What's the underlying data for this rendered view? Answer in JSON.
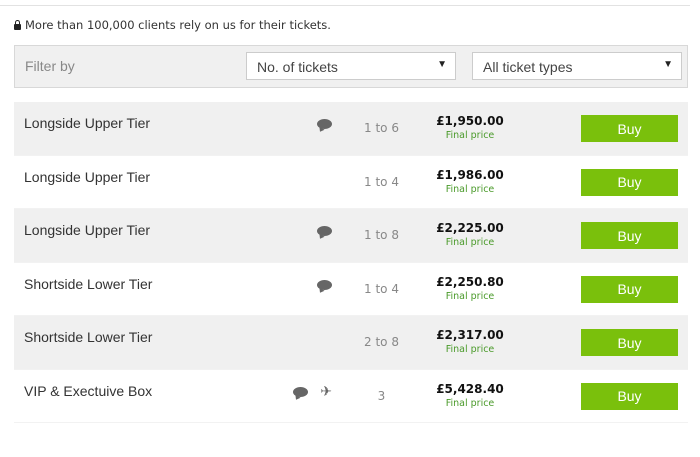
{
  "notice": {
    "icon": "lock-icon",
    "text": "More than 100,000 clients rely on us for their tickets."
  },
  "filter": {
    "label": "Filter by",
    "tickets_select": "No. of tickets",
    "types_select": "All ticket types"
  },
  "colors": {
    "buy": "#7ac00c",
    "final_price": "#4a9a2a"
  },
  "listings": [
    {
      "name": "Longside Upper Tier",
      "icons": [
        "comment-icon"
      ],
      "qty": "1 to 6",
      "price": "£1,950.00",
      "price_note": "Final price",
      "buy": "Buy"
    },
    {
      "name": "Longside Upper Tier",
      "icons": [],
      "qty": "1 to 4",
      "price": "£1,986.00",
      "price_note": "Final price",
      "buy": "Buy"
    },
    {
      "name": "Longside Upper Tier",
      "icons": [
        "comment-icon"
      ],
      "qty": "1 to 8",
      "price": "£2,225.00",
      "price_note": "Final price",
      "buy": "Buy"
    },
    {
      "name": "Shortside Lower Tier",
      "icons": [
        "comment-icon"
      ],
      "qty": "1 to 4",
      "price": "£2,250.80",
      "price_note": "Final price",
      "buy": "Buy"
    },
    {
      "name": "Shortside Lower Tier",
      "icons": [],
      "qty": "2 to 8",
      "price": "£2,317.00",
      "price_note": "Final price",
      "buy": "Buy"
    },
    {
      "name": "VIP & Exectuive Box",
      "icons": [
        "comment-icon",
        "plane-icon"
      ],
      "qty": "3",
      "price": "£5,428.40",
      "price_note": "Final price",
      "buy": "Buy"
    }
  ]
}
